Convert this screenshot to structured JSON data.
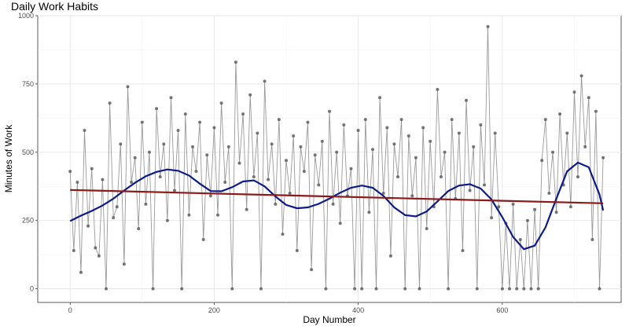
{
  "chart_data": {
    "type": "line",
    "title": "Daily Work Habits",
    "xlabel": "Day Number",
    "ylabel": "Minutes of Work",
    "xlim": [
      -45,
      765
    ],
    "ylim": [
      -50,
      1000
    ],
    "x_ticks": [
      0,
      200,
      400,
      600
    ],
    "y_ticks": [
      0,
      250,
      500,
      750,
      1000
    ],
    "grid": true,
    "series": [
      {
        "kind": "points",
        "color": "#555555",
        "line_color": "#9a9a9a",
        "x": [
          0,
          5,
          10,
          15,
          20,
          25,
          30,
          35,
          40,
          45,
          50,
          55,
          60,
          65,
          70,
          75,
          80,
          85,
          90,
          95,
          100,
          105,
          110,
          115,
          120,
          125,
          130,
          135,
          140,
          145,
          150,
          155,
          160,
          165,
          170,
          175,
          180,
          185,
          190,
          195,
          200,
          205,
          210,
          215,
          220,
          225,
          230,
          235,
          240,
          245,
          250,
          255,
          260,
          265,
          270,
          275,
          280,
          285,
          290,
          295,
          300,
          305,
          310,
          315,
          320,
          325,
          330,
          335,
          340,
          345,
          350,
          355,
          360,
          365,
          370,
          375,
          380,
          385,
          390,
          395,
          400,
          405,
          410,
          415,
          420,
          425,
          430,
          435,
          440,
          445,
          450,
          455,
          460,
          465,
          470,
          475,
          480,
          485,
          490,
          495,
          500,
          505,
          510,
          515,
          520,
          525,
          530,
          535,
          540,
          545,
          550,
          555,
          560,
          565,
          570,
          575,
          580,
          585,
          590,
          595,
          600,
          605,
          610,
          615,
          620,
          625,
          630,
          635,
          640,
          645,
          650,
          655,
          660,
          665,
          670,
          675,
          680,
          685,
          690,
          695,
          700,
          705,
          710,
          715,
          720,
          725,
          730,
          735,
          740
        ],
        "y": [
          430,
          140,
          390,
          60,
          580,
          230,
          440,
          150,
          120,
          400,
          0,
          680,
          260,
          300,
          530,
          90,
          740,
          390,
          480,
          220,
          610,
          310,
          500,
          0,
          660,
          410,
          530,
          250,
          700,
          360,
          580,
          0,
          640,
          270,
          520,
          430,
          610,
          180,
          490,
          340,
          590,
          270,
          680,
          390,
          520,
          0,
          830,
          460,
          640,
          290,
          710,
          410,
          570,
          0,
          760,
          400,
          530,
          310,
          620,
          200,
          470,
          350,
          560,
          140,
          520,
          430,
          610,
          70,
          490,
          380,
          540,
          0,
          650,
          310,
          500,
          240,
          600,
          340,
          440,
          0,
          580,
          0,
          620,
          280,
          510,
          0,
          700,
          350,
          590,
          120,
          530,
          410,
          620,
          0,
          560,
          340,
          480,
          0,
          590,
          220,
          540,
          300,
          730,
          410,
          500,
          0,
          620,
          330,
          570,
          140,
          690,
          360,
          520,
          0,
          600,
          380,
          960,
          260,
          570,
          300,
          0,
          240,
          0,
          310,
          0,
          180,
          0,
          250,
          0,
          290,
          0,
          470,
          620,
          350,
          500,
          280,
          640,
          380,
          570,
          300,
          720,
          410,
          780,
          520,
          700,
          180,
          650,
          0,
          480
        ]
      },
      {
        "kind": "smooth",
        "color": "#0d1b8c",
        "x": [
          0,
          15,
          30,
          45,
          60,
          75,
          90,
          105,
          120,
          135,
          150,
          165,
          180,
          195,
          210,
          225,
          240,
          255,
          270,
          285,
          300,
          315,
          330,
          345,
          360,
          375,
          390,
          405,
          420,
          435,
          450,
          465,
          480,
          495,
          510,
          525,
          540,
          555,
          570,
          585,
          600,
          615,
          630,
          645,
          660,
          675,
          690,
          705,
          720,
          735,
          740
        ],
        "y": [
          248,
          268,
          285,
          305,
          330,
          360,
          388,
          412,
          428,
          437,
          432,
          415,
          385,
          358,
          357,
          372,
          393,
          397,
          375,
          338,
          307,
          295,
          298,
          311,
          330,
          352,
          370,
          378,
          370,
          340,
          298,
          270,
          265,
          283,
          320,
          358,
          378,
          383,
          367,
          327,
          262,
          190,
          145,
          158,
          225,
          330,
          430,
          462,
          445,
          345,
          287
        ]
      },
      {
        "kind": "linear",
        "color": "#8b1a1a",
        "x": [
          0,
          740
        ],
        "y": [
          362,
          313
        ]
      }
    ]
  }
}
